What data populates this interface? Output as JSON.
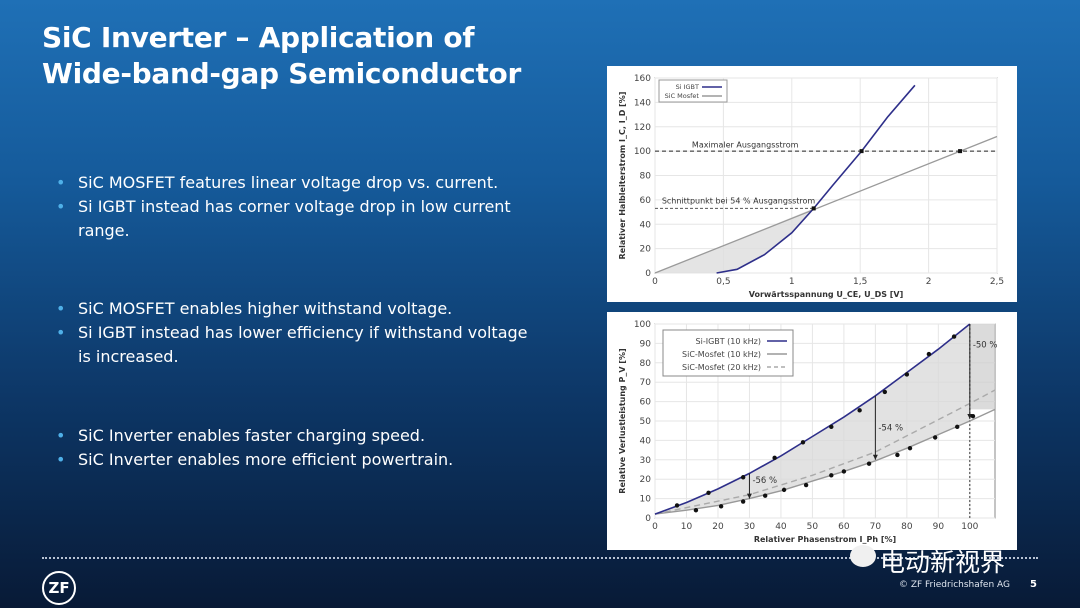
{
  "title": [
    "SiC Inverter – Application of",
    "Wide-band-gap Semiconductor"
  ],
  "bullet_groups": [
    [
      "SiC MOSFET features linear voltage drop vs. current.",
      "Si IGBT instead has corner voltage drop in low current range."
    ],
    [
      "SiC MOSFET enables higher withstand voltage.",
      "Si IGBT instead has lower efficiency if withstand voltage is increased."
    ],
    [
      "SiC Inverter enables faster charging speed.",
      "SiC Inverter enables more efficient powertrain."
    ]
  ],
  "footer": {
    "logo": "ZF",
    "copyright": "© ZF Friedrichshafen AG",
    "page": "5",
    "watermark": "电动新视界"
  },
  "chart_data": [
    {
      "type": "line",
      "xlabel": "Vorwärtsspannung U_CE, U_DS [V]",
      "ylabel": "Relativer Halbleiterstrom I_C, I_D [%]",
      "xlim": [
        0,
        2.5
      ],
      "ylim": [
        0,
        160
      ],
      "xticks": [
        "0",
        "0,5",
        "1",
        "1,5",
        "2",
        "2,5"
      ],
      "yticks": [
        "0",
        "20",
        "40",
        "60",
        "80",
        "100",
        "120",
        "140",
        "160"
      ],
      "grid": true,
      "legend": "top-left",
      "series": [
        {
          "name": "Si IGBT",
          "color": "#2e2f8a",
          "x": [
            0.45,
            0.6,
            0.8,
            1.0,
            1.16,
            1.3,
            1.51,
            1.7,
            1.9
          ],
          "y": [
            0,
            3,
            15,
            33,
            53,
            72,
            100,
            128,
            154
          ]
        },
        {
          "name": "SiC Mosfet",
          "color": "#9a9a9a",
          "x": [
            0,
            2.5
          ],
          "y": [
            0,
            112
          ]
        }
      ],
      "annotations": [
        {
          "text": "Maximaler Ausgangsstrom",
          "y": 100
        },
        {
          "text": "Schnittpunkt bei 54 % Ausgangsstrom",
          "y": 53
        }
      ]
    },
    {
      "type": "line",
      "xlabel": "Relativer Phasenstrom I_Ph [%]",
      "ylabel": "Relative Verlustleistung P_V [%]",
      "xlim": [
        0,
        108
      ],
      "ylim": [
        0,
        100
      ],
      "xticks": [
        "0",
        "10",
        "20",
        "30",
        "40",
        "50",
        "60",
        "70",
        "80",
        "90",
        "100"
      ],
      "yticks": [
        "0",
        "10",
        "20",
        "30",
        "40",
        "50",
        "60",
        "70",
        "80",
        "90",
        "100"
      ],
      "grid": true,
      "legend": "top-left",
      "series": [
        {
          "name": "Si-IGBT (10 kHz)",
          "color": "#2e2f8a",
          "x": [
            0,
            10,
            20,
            30,
            40,
            50,
            60,
            70,
            80,
            90,
            100
          ],
          "y": [
            2,
            8,
            15,
            23,
            32,
            42,
            52,
            63,
            75,
            87,
            100
          ]
        },
        {
          "name": "SiC-Mosfet (10 kHz)",
          "color": "#999999",
          "x": [
            0,
            10,
            20,
            30,
            40,
            50,
            60,
            70,
            80,
            90,
            100,
            108
          ],
          "y": [
            2,
            4,
            6.5,
            10,
            14,
            19,
            24,
            29.5,
            36,
            43,
            50,
            56
          ]
        },
        {
          "name": "SiC-Mosfet (20 kHz)",
          "color": "#aaaaaa",
          "dashed": true,
          "x": [
            0,
            30,
            50,
            70,
            100,
            108
          ],
          "y": [
            2,
            12,
            22,
            34,
            59,
            66
          ]
        }
      ],
      "points_igbt": {
        "x": [
          7,
          17,
          28,
          38,
          47,
          56,
          65,
          73,
          80,
          87,
          95
        ],
        "y": [
          6.5,
          13,
          21,
          31,
          39,
          47,
          55.5,
          65,
          74,
          84.5,
          93.5
        ]
      },
      "points_sic": {
        "x": [
          13,
          21,
          28,
          35,
          41,
          48,
          56,
          60,
          68,
          77,
          81,
          89,
          96,
          101
        ],
        "y": [
          4,
          6,
          8.5,
          11.5,
          14.5,
          17,
          22,
          24,
          28,
          32.5,
          36,
          41.5,
          47,
          52.5
        ]
      },
      "annotations": [
        {
          "text": "-56 %",
          "x": 30
        },
        {
          "text": "-54 %",
          "x": 70
        },
        {
          "text": "-50 %",
          "x": 100
        }
      ]
    }
  ]
}
